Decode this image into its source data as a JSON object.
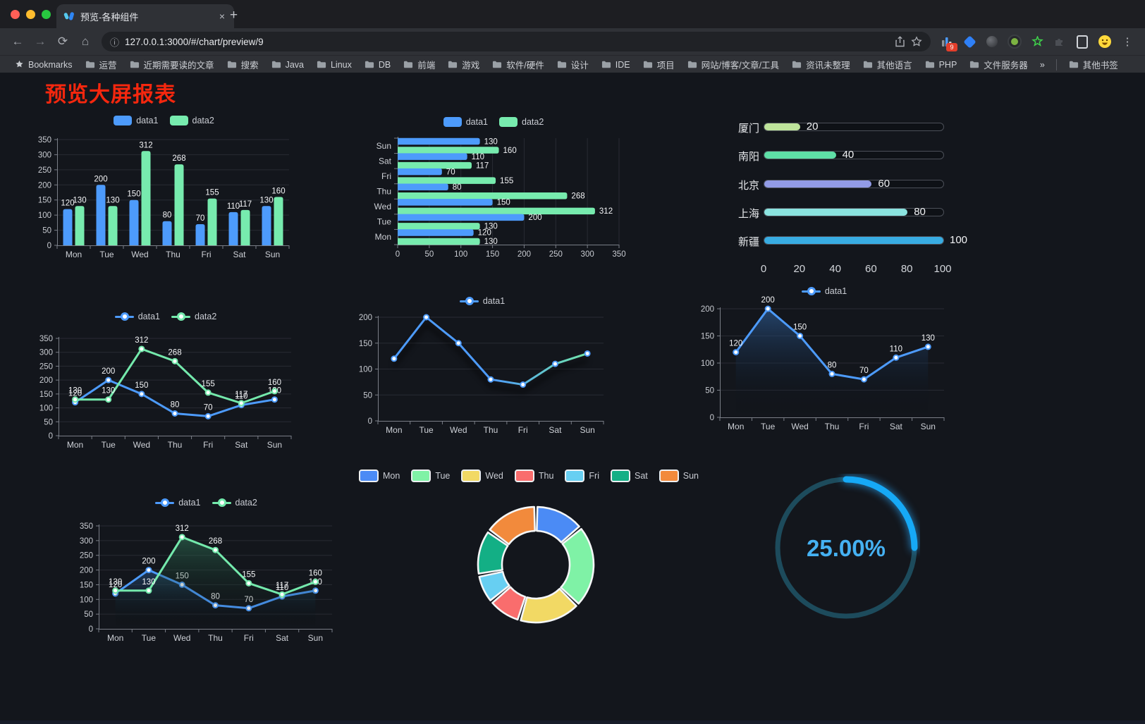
{
  "browser": {
    "tab": {
      "title": "预览-各种组件"
    },
    "url": "127.0.0.1:3000/#/chart/preview/9",
    "glyphs": {
      "back": "←",
      "forward": "→",
      "reload": "⟳",
      "home": "⌂",
      "info": "ⓘ",
      "close": "×",
      "new_tab": "+",
      "menu": "⋮",
      "overflow": "»"
    },
    "extensions": {
      "badge": "9"
    },
    "bookmarks_bar": {
      "star_label": "Bookmarks",
      "folders": [
        "运营",
        "近期需要读的文章",
        "搜索",
        "Java",
        "Linux",
        "DB",
        "前端",
        "游戏",
        "软件/硬件",
        "设计",
        "IDE",
        "项目",
        "网站/博客/文章/工具",
        "资讯未整理",
        "其他语言",
        "PHP",
        "文件服务器"
      ],
      "other_bookmarks": "其他书签"
    }
  },
  "page": {
    "title": "预览大屏报表",
    "title_color": "#F5270E",
    "background": "#13161C"
  },
  "chart_data": [
    {
      "id": "bar-vertical",
      "type": "bar",
      "legend_position": "top",
      "categories": [
        "Mon",
        "Tue",
        "Wed",
        "Thu",
        "Fri",
        "Sat",
        "Sun"
      ],
      "series": [
        {
          "name": "data1",
          "color": "#4D9BFC",
          "values": [
            120,
            200,
            150,
            80,
            70,
            110,
            130
          ]
        },
        {
          "name": "data2",
          "color": "#77EBAE",
          "values": [
            130,
            130,
            312,
            268,
            155,
            117,
            160
          ]
        }
      ],
      "ylim": [
        0,
        350
      ],
      "yticks": [
        0,
        50,
        100,
        150,
        200,
        250,
        300,
        350
      ],
      "grid": true,
      "value_labels": true
    },
    {
      "id": "bar-horizontal",
      "type": "bar",
      "orientation": "horizontal",
      "legend_position": "top",
      "categories": [
        "Mon",
        "Tue",
        "Wed",
        "Thu",
        "Fri",
        "Sat",
        "Sun"
      ],
      "display_order": "Sun-top",
      "series": [
        {
          "name": "data1",
          "color": "#4D9BFC",
          "values": [
            120,
            200,
            150,
            80,
            70,
            110,
            130
          ]
        },
        {
          "name": "data2",
          "color": "#77EBAE",
          "values": [
            130,
            130,
            312,
            268,
            155,
            117,
            160
          ]
        }
      ],
      "xlim": [
        0,
        350
      ],
      "xticks": [
        0,
        50,
        100,
        150,
        200,
        250,
        300,
        350
      ],
      "grid": true,
      "value_labels": true
    },
    {
      "id": "progress-bars",
      "type": "bar",
      "orientation": "horizontal",
      "style": "progress",
      "items": [
        {
          "label": "厦门",
          "value": 20,
          "color": "#BEE49B"
        },
        {
          "label": "南阳",
          "value": 40,
          "color": "#5FDFA7"
        },
        {
          "label": "北京",
          "value": 60,
          "color": "#929BE6"
        },
        {
          "label": "上海",
          "value": 80,
          "color": "#8BE3DF"
        },
        {
          "label": "新疆",
          "value": 100,
          "color": "#38ACE2"
        }
      ],
      "xlim": [
        0,
        100
      ],
      "xticks": [
        0,
        20,
        40,
        60,
        80,
        100
      ]
    },
    {
      "id": "line-dual",
      "type": "line",
      "legend_position": "top",
      "categories": [
        "Mon",
        "Tue",
        "Wed",
        "Thu",
        "Fri",
        "Sat",
        "Sun"
      ],
      "series": [
        {
          "name": "data1",
          "color": "#4D9BFC",
          "values": [
            120,
            200,
            150,
            80,
            70,
            110,
            130
          ],
          "labels": true
        },
        {
          "name": "data2",
          "color": "#74E9AC",
          "values": [
            130,
            130,
            312,
            268,
            155,
            117,
            160
          ],
          "labels": true
        }
      ],
      "ylim": [
        0,
        350
      ],
      "yticks": [
        0,
        50,
        100,
        150,
        200,
        250,
        300,
        350
      ],
      "grid": true
    },
    {
      "id": "line-gradient",
      "type": "line",
      "legend_position": "top",
      "shadow": true,
      "categories": [
        "Mon",
        "Tue",
        "Wed",
        "Thu",
        "Fri",
        "Sat",
        "Sun"
      ],
      "series": [
        {
          "name": "data1",
          "color": "#4D9BFC",
          "gradient": [
            "#4D9BFC",
            "#4D9BFC",
            "#72E6AA"
          ],
          "values": [
            120,
            200,
            150,
            80,
            70,
            110,
            130
          ],
          "labels": false
        }
      ],
      "ylim": [
        0,
        200
      ],
      "yticks": [
        0,
        50,
        100,
        150,
        200
      ],
      "grid": true
    },
    {
      "id": "area-single",
      "type": "area",
      "legend_position": "top",
      "categories": [
        "Mon",
        "Tue",
        "Wed",
        "Thu",
        "Fri",
        "Sat",
        "Sun"
      ],
      "series": [
        {
          "name": "data1",
          "color": "#4D9BFC",
          "fill": "rgba(47,94,152,0.65)",
          "values": [
            120,
            200,
            150,
            80,
            70,
            110,
            130
          ],
          "labels": true
        }
      ],
      "ylim": [
        0,
        200
      ],
      "yticks": [
        0,
        50,
        100,
        150,
        200
      ],
      "grid": true
    },
    {
      "id": "area-dual",
      "type": "area",
      "legend_position": "top",
      "categories": [
        "Mon",
        "Tue",
        "Wed",
        "Thu",
        "Fri",
        "Sat",
        "Sun"
      ],
      "series": [
        {
          "name": "data1",
          "color": "#4D9BFC",
          "fill": "rgba(43,88,142,0.55)",
          "values": [
            120,
            200,
            150,
            80,
            70,
            110,
            130
          ],
          "labels": true
        },
        {
          "name": "data2",
          "color": "#74E9AC",
          "fill": "rgba(52,128,96,0.50)",
          "values": [
            130,
            130,
            312,
            268,
            155,
            117,
            160
          ],
          "labels": true
        }
      ],
      "ylim": [
        0,
        350
      ],
      "yticks": [
        0,
        50,
        100,
        150,
        200,
        250,
        300,
        350
      ],
      "grid": true
    },
    {
      "id": "donut",
      "type": "pie",
      "legend_position": "top",
      "inner_radius_ratio": 0.58,
      "categories": [
        "Mon",
        "Tue",
        "Wed",
        "Thu",
        "Fri",
        "Sat",
        "Sun"
      ],
      "values": [
        120,
        200,
        150,
        80,
        70,
        110,
        130
      ],
      "colors": [
        "#4B8BF5",
        "#7FF2A6",
        "#F2D964",
        "#F96D6D",
        "#67CFF2",
        "#13AF85",
        "#F28A3C"
      ],
      "border_color": "#F4F6F7"
    },
    {
      "id": "gauge",
      "type": "gauge",
      "value": 25,
      "max": 100,
      "label": "25.00%",
      "bar_color": "#16A9F6",
      "track_color": "#1D4B5C",
      "text_color": "#45B1F2"
    }
  ]
}
